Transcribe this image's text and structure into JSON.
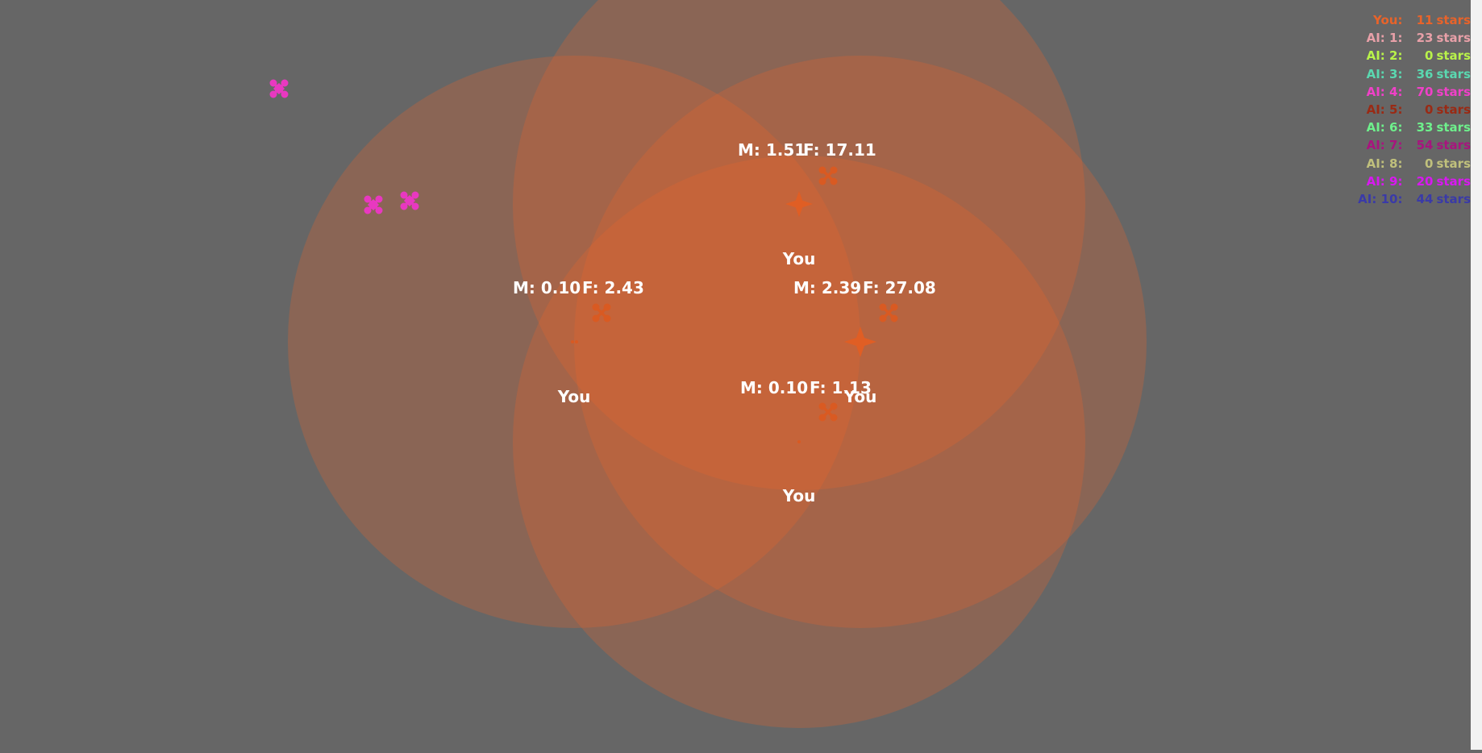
{
  "player_color": "#e8632a",
  "owner_label": "You",
  "stars_unit": "stars",
  "scoreboard": [
    {
      "name": "You:",
      "count": "11",
      "color": "#e8632a"
    },
    {
      "name": "AI: 1:",
      "count": "23",
      "color": "#e8a0a8"
    },
    {
      "name": "AI: 2:",
      "count": "0",
      "color": "#b8f24a"
    },
    {
      "name": "AI: 3:",
      "count": "36",
      "color": "#5ad8b0"
    },
    {
      "name": "AI: 4:",
      "count": "70",
      "color": "#f040c8"
    },
    {
      "name": "AI: 5:",
      "count": "0",
      "color": "#9a2a14"
    },
    {
      "name": "AI: 6:",
      "count": "33",
      "color": "#6ef08c"
    },
    {
      "name": "AI: 7:",
      "count": "54",
      "color": "#a8147e"
    },
    {
      "name": "AI: 8:",
      "count": "0",
      "color": "#c0c07c"
    },
    {
      "name": "AI: 9:",
      "count": "20",
      "color": "#d818f0"
    },
    {
      "name": "AI: 10:",
      "count": "44",
      "color": "#3a3aa8"
    }
  ],
  "planets": [
    {
      "id": "planet-top",
      "m": "M: 1.51",
      "f": "F: 17.11",
      "owner": "You"
    },
    {
      "id": "planet-left",
      "m": "M: 0.10",
      "f": "F: 2.43",
      "owner": "You"
    },
    {
      "id": "planet-right",
      "m": "M: 2.39",
      "f": "F: 27.08",
      "owner": "You"
    },
    {
      "id": "planet-bottom",
      "m": "M: 0.10",
      "f": "F: 1.13",
      "owner": "You"
    }
  ]
}
